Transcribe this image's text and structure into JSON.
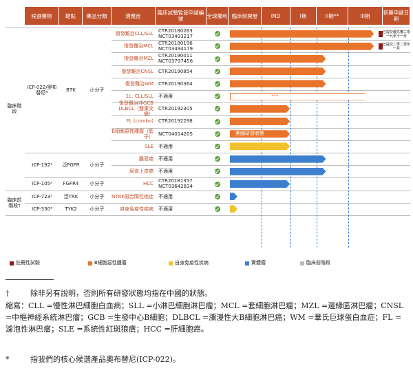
{
  "headers": [
    "候選藥物",
    "靶點",
    "藥品分類",
    "適應症",
    "臨床試驗監管申請編號",
    "全球權利",
    "臨床前開發",
    "IND",
    "I期",
    "II期**",
    "III期",
    "新藥申請日期"
  ],
  "groups": [
    {
      "label": "臨床階段"
    },
    {
      "label": "臨床前階段†"
    }
  ],
  "drugs": [
    {
      "name": "ICP-022/奧布替尼*",
      "target": "BTK",
      "class": "小分子"
    },
    {
      "name": "ICP-192¹",
      "target": "泛FGFR",
      "class": "小分子"
    },
    {
      "name": "ICP-105²",
      "target": "FGFR4",
      "class": "小分子"
    },
    {
      "name": "ICP-723³",
      "target": "泛TRK",
      "class": "小分子"
    },
    {
      "name": "ICP-330⁴",
      "target": "TYK2",
      "class": "小分子"
    }
  ],
  "rows": [
    {
      "indication": "復發難治CLL/SLL",
      "trial": "CTR20180263 NCT03493217",
      "phase_progress": 0.96,
      "color": "#e8742c",
      "flag": true,
      "label": ""
    },
    {
      "indication": "復發難治MCL",
      "trial": "CTR20180196 NCT03494179",
      "phase_progress": 0.96,
      "color": "#e8742c",
      "flag": true,
      "label": ""
    },
    {
      "indication": "復發難治MZL",
      "trial": "CTR20190011 NCT03797456",
      "phase_progress": 0.64,
      "color": "#e8742c",
      "flag": false,
      "label": ""
    },
    {
      "indication": "復發難治CNSL",
      "trial": "CTR20190854",
      "phase_progress": 0.64,
      "color": "#e8742c",
      "flag": false,
      "label": ""
    },
    {
      "indication": "復發難治WM",
      "trial": "CTR20190364",
      "phase_progress": 0.64,
      "color": "#e8742c",
      "flag": false,
      "label": ""
    },
    {
      "indication": "1L: CLL/SLL",
      "trial": "不適用",
      "phase_progress": 0.92,
      "color": "#ffffff",
      "flag": false,
      "label": "***"
    },
    {
      "indication": "復發難治非GCB DLBCL（雙重突變）",
      "trial": "CTR20192305",
      "phase_progress": 0.4,
      "color": "#e8742c",
      "flag": false,
      "label": ""
    },
    {
      "indication": "FL (combo)",
      "trial": "CTR20192298",
      "phase_progress": 0.4,
      "color": "#e8742c",
      "flag": false,
      "label": ""
    },
    {
      "indication": "B細胞惡性腫瘤（藍子）",
      "trial": "NCT04014205",
      "phase_progress": 0.4,
      "color": "#e8742c",
      "flag": false,
      "label": "美國研發狀態"
    },
    {
      "indication": "SLE",
      "trial": "不適用",
      "phase_progress": 0.4,
      "color": "#f2c12e",
      "flag": false,
      "label": ""
    },
    {
      "indication": "膽管癌",
      "trial": "不適用",
      "phase_progress": 0.64,
      "color": "#3d7fcf",
      "flag": false,
      "label": ""
    },
    {
      "indication": "尿道上皮癌",
      "trial": "不適用",
      "phase_progress": 0.64,
      "color": "#3d7fcf",
      "flag": false,
      "label": ""
    },
    {
      "indication": "HCC",
      "trial": "CTR20181357 NCT03642834",
      "phase_progress": 0.4,
      "color": "#3d7fcf",
      "flag": false,
      "label": ""
    },
    {
      "indication": "NTRK融合陽性癌症",
      "trial": "不適用",
      "phase_progress": 0.05,
      "color": "#3d7fcf",
      "flag": false,
      "label": ""
    },
    {
      "indication": "自身免疫性疾病",
      "trial": "不適用",
      "phase_progress": 0.05,
      "color": "#f2c12e",
      "flag": false,
      "label": ""
    }
  ],
  "nda_dates": [
    {
      "row": 0,
      "text": "已提交優先審二零一九年十一月"
    },
    {
      "row": 1,
      "text": "已提交二零二零年一月"
    }
  ],
  "legend": [
    {
      "label": "註冊性試驗",
      "color": "#8b1a1a"
    },
    {
      "label": "B細胞惡性腫瘤",
      "color": "#e8742c"
    },
    {
      "label": "自身免疫性疾病",
      "color": "#f2c12e"
    },
    {
      "label": "實體瘤",
      "color": "#3d7fcf"
    },
    {
      "label": "臨床前階段",
      "color": "#bbbbbb"
    }
  ],
  "notes": {
    "dagger_mark": "†",
    "dagger_text": "除非另有說明，否則所有研發狀態均指在中國的狀態。",
    "abbrev": "縮寫：CLL =慢性淋巴細胞白血病；SLL =小淋巴細胞淋巴瘤；MCL =套細胞淋巴瘤；MZL =邊緣區淋巴瘤；CNSL =中樞神經系統淋巴瘤；GCB =生發中心B細胞；DLBCL =瀰漫性大B細胞淋巴癌；WM =華氏巨球蛋白血症；FL =濾泡性淋巴瘤；SLE =系統性紅斑狼瘡；HCC =肝細胞癌。",
    "star_mark": "*",
    "star_text": "指我們的核心候選產品奧布替尼(ICP-022)。"
  }
}
